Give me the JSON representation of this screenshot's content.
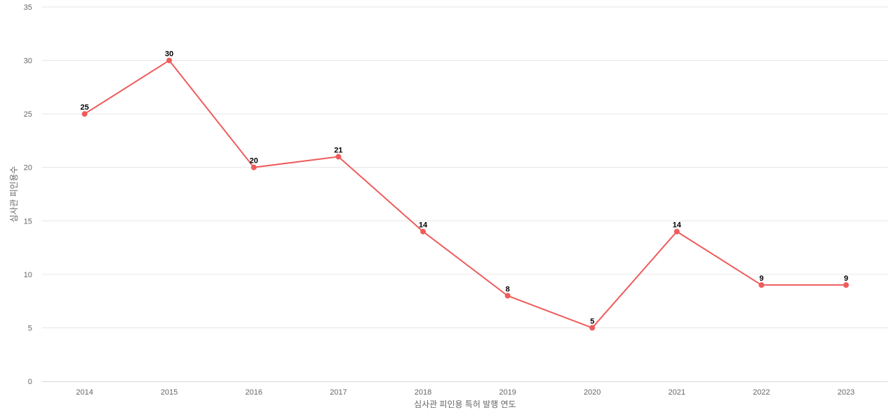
{
  "chart_data": {
    "type": "line",
    "title": "",
    "xlabel": "심사관 피인용 특허 발행 연도",
    "ylabel": "심사관 피인용수",
    "categories": [
      "2014",
      "2015",
      "2016",
      "2017",
      "2018",
      "2019",
      "2020",
      "2021",
      "2022",
      "2023"
    ],
    "series": [
      {
        "values": [
          25,
          30,
          20,
          21,
          14,
          8,
          5,
          14,
          9,
          9
        ],
        "color": "#ef5b5b"
      }
    ],
    "ylim": [
      0,
      35
    ],
    "yticks": [
      0,
      5,
      10,
      15,
      20,
      25,
      30,
      35
    ],
    "grid": true,
    "legend": "none",
    "data_labels": true
  }
}
